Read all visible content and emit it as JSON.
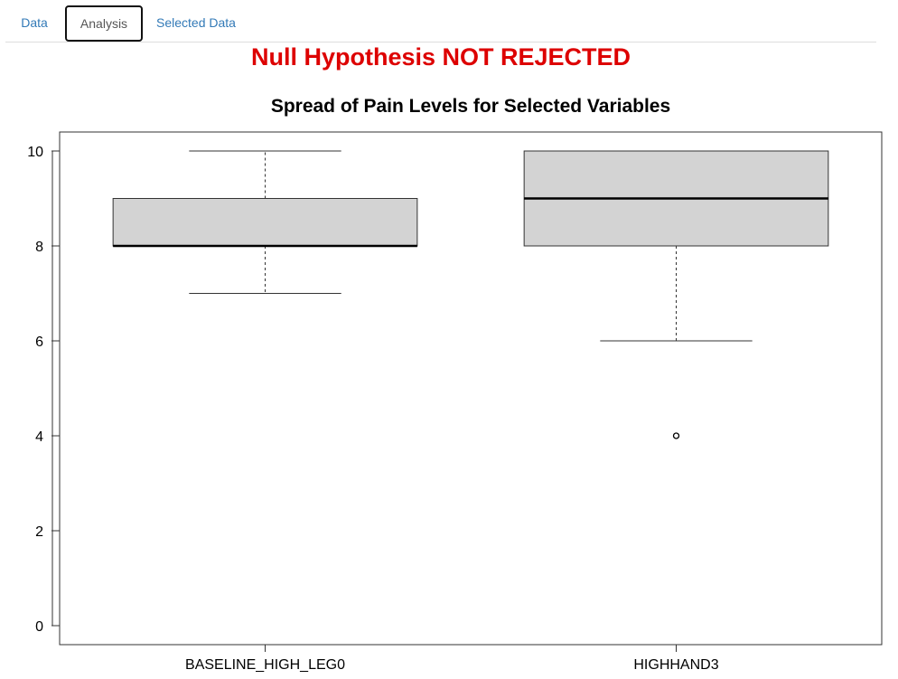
{
  "tabs": [
    {
      "label": "Data"
    },
    {
      "label": "Analysis"
    },
    {
      "label": "Selected Data"
    }
  ],
  "headline": "Null Hypothesis NOT REJECTED",
  "colors": {
    "headline": "#dd0000",
    "tab_link": "#337ab7",
    "box_fill": "#d3d3d3"
  },
  "chart_data": {
    "type": "box",
    "title": "Spread of Pain Levels for Selected Variables",
    "xlabel": "",
    "ylabel": "",
    "ylim": [
      -0.4,
      10.4
    ],
    "yticks": [
      0,
      2,
      4,
      6,
      8,
      10
    ],
    "grid": false,
    "categories": [
      "BASELINE_HIGH_LEG0",
      "HIGHHAND3"
    ],
    "boxes": [
      {
        "min": 7,
        "q1": 8,
        "median": 8,
        "q3": 9,
        "max": 10,
        "outliers": []
      },
      {
        "min": 6,
        "q1": 8,
        "median": 9,
        "q3": 10,
        "max": 10,
        "outliers": [
          4
        ]
      }
    ]
  }
}
